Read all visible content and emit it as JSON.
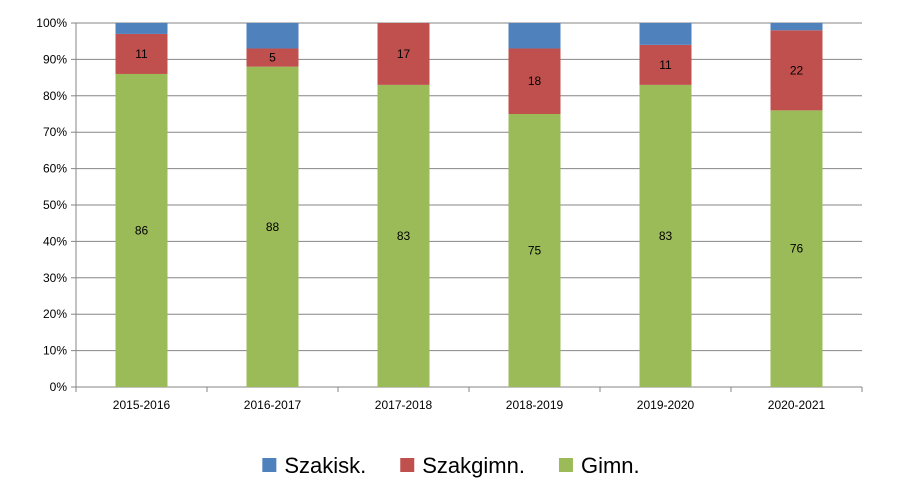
{
  "chart_data": {
    "type": "bar",
    "stacked": true,
    "percent_axis": true,
    "categories": [
      "2015-2016",
      "2016-2017",
      "2017-2018",
      "2018-2019",
      "2019-2020",
      "2020-2021"
    ],
    "series": [
      {
        "name": "Gimn.",
        "color": "#9BBB59",
        "values": [
          86,
          88,
          83,
          75,
          83,
          76
        ],
        "labels": [
          "86",
          "88",
          "83",
          "75",
          "83",
          "76"
        ]
      },
      {
        "name": "Szakgimn.",
        "color": "#C0504D",
        "values": [
          11,
          5,
          17,
          18,
          11,
          22
        ],
        "labels": [
          "11",
          "5",
          "17",
          "18",
          "11",
          "22"
        ]
      },
      {
        "name": "Szakisk.",
        "color": "#4F81BD",
        "values": [
          3,
          7,
          0,
          7,
          6,
          2
        ],
        "labels": [
          "",
          "",
          "",
          "",
          "",
          ""
        ]
      }
    ],
    "y_ticks": [
      "0%",
      "10%",
      "20%",
      "30%",
      "40%",
      "50%",
      "60%",
      "70%",
      "80%",
      "90%",
      "100%"
    ],
    "ylim": [
      0,
      100
    ],
    "grid": true,
    "legend": {
      "position": "bottom",
      "order": [
        "Szakisk.",
        "Szakgimn.",
        "Gimn."
      ]
    },
    "title": "",
    "xlabel": "",
    "ylabel": ""
  }
}
